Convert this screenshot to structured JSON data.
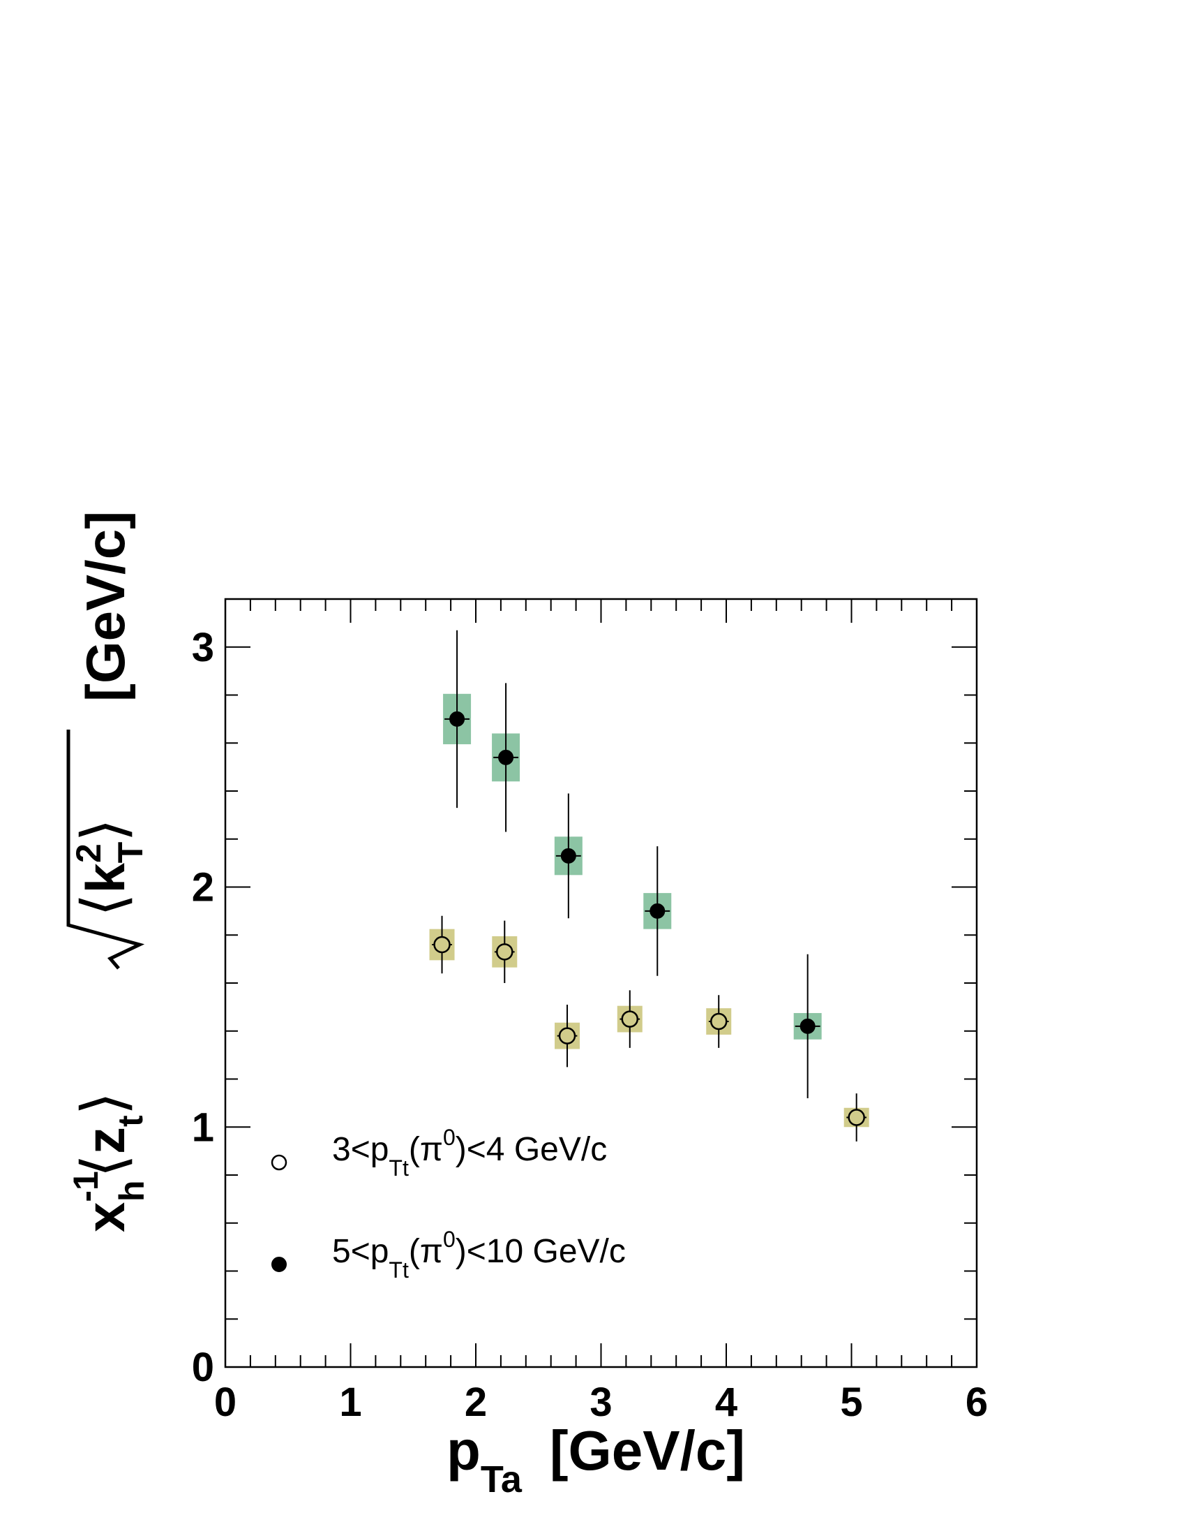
{
  "chart_data": {
    "type": "scatter",
    "title": "",
    "xlabel": {
      "main": "p",
      "sub": "Ta",
      "unit": "[GeV/c]"
    },
    "ylabel": {
      "x": "x",
      "x_sup": "-1",
      "x_sub": "h",
      "z": "z",
      "z_sub": "t",
      "k": "k",
      "k_sup": "2",
      "k_sub": "T",
      "unit": "[GeV/c]"
    },
    "xlim": [
      0,
      6
    ],
    "ylim": [
      0,
      3.2
    ],
    "xticks": [
      "0",
      "1",
      "2",
      "3",
      "4",
      "5",
      "6"
    ],
    "yticks": [
      "0",
      "1",
      "2",
      "3"
    ],
    "grid": false,
    "legend_position": "bottom-left",
    "series": [
      {
        "name": {
          "pre": "3<p",
          "sub": "Tt",
          "mid": "(π",
          "sup": "0",
          "post": ")<4 GeV/c"
        },
        "marker": "open-circle",
        "box_color": "#d1cc8b",
        "points": [
          {
            "x": 1.73,
            "y": 1.76,
            "err": 0.12,
            "sys": 0.065,
            "xerr": 0.08
          },
          {
            "x": 2.23,
            "y": 1.73,
            "err": 0.13,
            "sys": 0.065,
            "xerr": 0.08
          },
          {
            "x": 2.73,
            "y": 1.38,
            "err": 0.13,
            "sys": 0.055,
            "xerr": 0.08
          },
          {
            "x": 3.23,
            "y": 1.45,
            "err": 0.12,
            "sys": 0.055,
            "xerr": 0.08
          },
          {
            "x": 3.94,
            "y": 1.44,
            "err": 0.11,
            "sys": 0.055,
            "xerr": 0.08
          },
          {
            "x": 5.04,
            "y": 1.04,
            "err": 0.1,
            "sys": 0.04,
            "xerr": 0.08
          }
        ]
      },
      {
        "name": {
          "pre": "5<p",
          "sub": "Tt",
          "mid": "(π",
          "sup": "0",
          "post": ")<10 GeV/c"
        },
        "marker": "filled-circle",
        "box_color": "#8cc4a4",
        "points": [
          {
            "x": 1.85,
            "y": 2.7,
            "err": 0.37,
            "sys": 0.105,
            "xerr": 0.1
          },
          {
            "x": 2.24,
            "y": 2.54,
            "err": 0.31,
            "sys": 0.1,
            "xerr": 0.1
          },
          {
            "x": 2.74,
            "y": 2.13,
            "err": 0.26,
            "sys": 0.08,
            "xerr": 0.1
          },
          {
            "x": 3.45,
            "y": 1.9,
            "err": 0.27,
            "sys": 0.075,
            "xerr": 0.1
          },
          {
            "x": 4.65,
            "y": 1.42,
            "err": 0.3,
            "sys": 0.055,
            "xerr": 0.1
          }
        ]
      }
    ]
  }
}
